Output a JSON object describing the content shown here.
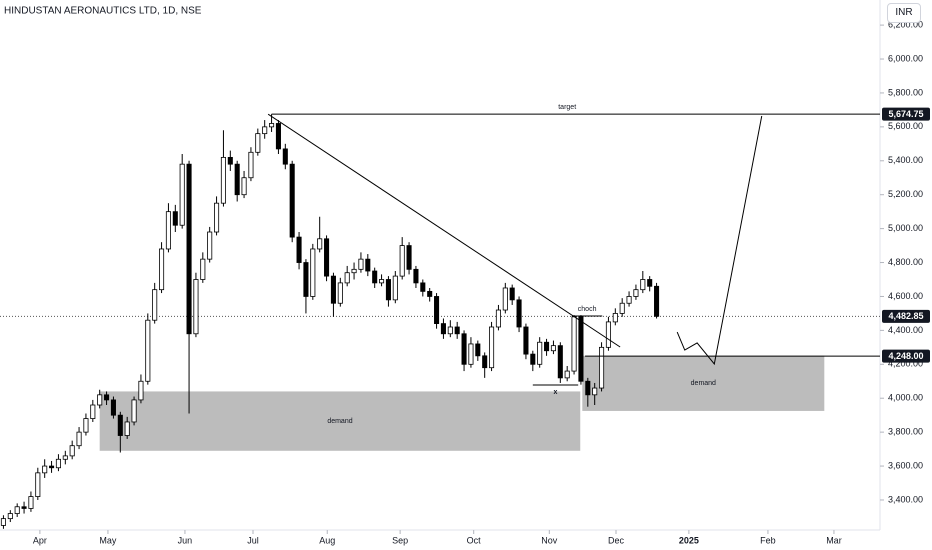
{
  "chart_data": {
    "type": "candlestick",
    "title": "HINDUSTAN AERONAUTICS LTD, 1D, NSE",
    "currency": "INR",
    "up_color": "#ffffff",
    "down_color": "#000000",
    "xlim": [
      -0.5,
      127.5
    ],
    "ylim": [
      3223,
      6348
    ],
    "xticks": [
      {
        "value": 5.3,
        "label": "Apr"
      },
      {
        "value": 15.2,
        "label": "May"
      },
      {
        "value": 26.4,
        "label": "Jun"
      },
      {
        "value": 36.3,
        "label": "Jul"
      },
      {
        "value": 47.1,
        "label": "Aug"
      },
      {
        "value": 57.7,
        "label": "Sep"
      },
      {
        "value": 68.4,
        "label": "Oct"
      },
      {
        "value": 79.4,
        "label": "Nov"
      },
      {
        "value": 89.1,
        "label": "Dec"
      },
      {
        "value": 99.7,
        "label": "2025"
      },
      {
        "value": 111.2,
        "label": "Feb"
      },
      {
        "value": 120.8,
        "label": "Mar"
      }
    ],
    "yticks": [
      {
        "value": 3400,
        "label": "3,400.00"
      },
      {
        "value": 3600,
        "label": "3,600.00"
      },
      {
        "value": 3800,
        "label": "3,800.00"
      },
      {
        "value": 4000,
        "label": "4,000.00"
      },
      {
        "value": 4200,
        "label": "4,200.00"
      },
      {
        "value": 4400,
        "label": "4,400.00"
      },
      {
        "value": 4600,
        "label": "4,600.00"
      },
      {
        "value": 4800,
        "label": "4,800.00"
      },
      {
        "value": 5000,
        "label": "5,000.00"
      },
      {
        "value": 5200,
        "label": "5,200.00"
      },
      {
        "value": 5400,
        "label": "5,400.00"
      },
      {
        "value": 5600,
        "label": "5,600.00"
      },
      {
        "value": 5800,
        "label": "5,800.00"
      },
      {
        "value": 6000,
        "label": "6,000.00"
      },
      {
        "value": 6200,
        "label": "6,200.00"
      }
    ],
    "candles": [
      [
        3250,
        3310,
        3230,
        3290
      ],
      [
        3290,
        3340,
        3270,
        3320
      ],
      [
        3320,
        3380,
        3300,
        3360
      ],
      [
        3360,
        3390,
        3320,
        3350
      ],
      [
        3350,
        3450,
        3330,
        3420
      ],
      [
        3420,
        3590,
        3400,
        3560
      ],
      [
        3560,
        3640,
        3530,
        3600
      ],
      [
        3600,
        3630,
        3560,
        3590
      ],
      [
        3590,
        3670,
        3570,
        3640
      ],
      [
        3640,
        3690,
        3610,
        3660
      ],
      [
        3660,
        3750,
        3640,
        3720
      ],
      [
        3720,
        3830,
        3700,
        3800
      ],
      [
        3800,
        3910,
        3780,
        3880
      ],
      [
        3880,
        3990,
        3860,
        3960
      ],
      [
        3960,
        4050,
        3940,
        4020
      ],
      [
        4020,
        4040,
        3960,
        3990
      ],
      [
        3990,
        4010,
        3880,
        3900
      ],
      [
        3900,
        3920,
        3680,
        3780
      ],
      [
        3780,
        3890,
        3760,
        3860
      ],
      [
        3860,
        4010,
        3840,
        3990
      ],
      [
        3990,
        4140,
        3970,
        4100
      ],
      [
        4100,
        4500,
        4080,
        4460
      ],
      [
        4460,
        4680,
        4440,
        4640
      ],
      [
        4640,
        4920,
        4620,
        4880
      ],
      [
        4880,
        5150,
        4860,
        5100
      ],
      [
        5100,
        5140,
        4980,
        5020
      ],
      [
        5020,
        5440,
        5000,
        5380
      ],
      [
        5380,
        5400,
        3910,
        4380
      ],
      [
        4380,
        4740,
        4360,
        4700
      ],
      [
        4700,
        4860,
        4680,
        4820
      ],
      [
        4820,
        5010,
        4800,
        4980
      ],
      [
        4980,
        5190,
        4960,
        5150
      ],
      [
        5150,
        5580,
        5130,
        5420
      ],
      [
        5420,
        5460,
        5340,
        5380
      ],
      [
        5380,
        5400,
        5160,
        5200
      ],
      [
        5200,
        5340,
        5180,
        5300
      ],
      [
        5300,
        5480,
        5280,
        5450
      ],
      [
        5450,
        5590,
        5430,
        5560
      ],
      [
        5560,
        5640,
        5530,
        5600
      ],
      [
        5600,
        5674.75,
        5570,
        5620
      ],
      [
        5620,
        5640,
        5440,
        5470
      ],
      [
        5470,
        5500,
        5350,
        5380
      ],
      [
        5380,
        5400,
        4920,
        4950
      ],
      [
        4950,
        4980,
        4760,
        4800
      ],
      [
        4800,
        4820,
        4500,
        4600
      ],
      [
        4600,
        4910,
        4580,
        4880
      ],
      [
        4880,
        5070,
        4860,
        4940
      ],
      [
        4940,
        4960,
        4690,
        4720
      ],
      [
        4720,
        4740,
        4480,
        4560
      ],
      [
        4560,
        4710,
        4540,
        4680
      ],
      [
        4680,
        4780,
        4660,
        4740
      ],
      [
        4740,
        4800,
        4700,
        4760
      ],
      [
        4760,
        4860,
        4740,
        4820
      ],
      [
        4820,
        4850,
        4720,
        4750
      ],
      [
        4750,
        4770,
        4650,
        4680
      ],
      [
        4680,
        4730,
        4660,
        4700
      ],
      [
        4700,
        4720,
        4540,
        4580
      ],
      [
        4580,
        4750,
        4560,
        4720
      ],
      [
        4720,
        4950,
        4700,
        4900
      ],
      [
        4900,
        4920,
        4730,
        4760
      ],
      [
        4760,
        4780,
        4650,
        4680
      ],
      [
        4680,
        4700,
        4600,
        4630
      ],
      [
        4630,
        4650,
        4570,
        4600
      ],
      [
        4600,
        4620,
        4410,
        4440
      ],
      [
        4440,
        4470,
        4350,
        4380
      ],
      [
        4380,
        4460,
        4360,
        4420
      ],
      [
        4420,
        4450,
        4350,
        4380
      ],
      [
        4380,
        4400,
        4160,
        4200
      ],
      [
        4200,
        4360,
        4180,
        4320
      ],
      [
        4320,
        4340,
        4220,
        4250
      ],
      [
        4250,
        4270,
        4120,
        4180
      ],
      [
        4180,
        4450,
        4160,
        4420
      ],
      [
        4420,
        4550,
        4400,
        4520
      ],
      [
        4520,
        4680,
        4500,
        4650
      ],
      [
        4650,
        4670,
        4550,
        4580
      ],
      [
        4580,
        4600,
        4390,
        4420
      ],
      [
        4420,
        4440,
        4230,
        4260
      ],
      [
        4260,
        4280,
        4160,
        4200
      ],
      [
        4200,
        4360,
        4180,
        4330
      ],
      [
        4330,
        4350,
        4250,
        4280
      ],
      [
        4280,
        4340,
        4260,
        4310
      ],
      [
        4310,
        4330,
        4090,
        4120
      ],
      [
        4120,
        4190,
        4100,
        4160
      ],
      [
        4160,
        4490,
        4140,
        4480
      ],
      [
        4480,
        4490,
        4080,
        4100
      ],
      [
        4100,
        4120,
        3950,
        4020
      ],
      [
        4020,
        4090,
        3960,
        4060
      ],
      [
        4060,
        4330,
        4040,
        4300
      ],
      [
        4300,
        4480,
        4280,
        4450
      ],
      [
        4450,
        4530,
        4430,
        4500
      ],
      [
        4500,
        4590,
        4480,
        4560
      ],
      [
        4560,
        4630,
        4540,
        4600
      ],
      [
        4600,
        4670,
        4580,
        4640
      ],
      [
        4640,
        4750,
        4620,
        4700
      ],
      [
        4700,
        4720,
        4630,
        4660
      ],
      [
        4660,
        4680,
        4470,
        4482.85
      ]
    ],
    "zones": [
      {
        "label": "demand",
        "x": [
          14,
          83.9
        ],
        "y": [
          3690,
          4040
        ]
      },
      {
        "label": "demand",
        "x": [
          84.2,
          119.4
        ],
        "y": [
          3925,
          4250
        ]
      }
    ],
    "trendline": {
      "x": [
        38.5,
        89.7
      ],
      "y": [
        5674.75,
        4302
      ]
    },
    "target": {
      "label": "target",
      "x": 39,
      "label_x": 82,
      "price": {
        "value": 5674.75,
        "label": "5,674.75"
      }
    },
    "level": {
      "x": 84.6,
      "price": {
        "value": 4248,
        "label": "4,248.00"
      }
    },
    "last_price": {
      "value": 4482.85,
      "label": "4,482.85"
    },
    "choch": {
      "label": "choch",
      "x": [
        82.7,
        87.1
      ],
      "y": 4485
    },
    "low_mark": {
      "label": "x",
      "x": [
        77,
        83.6
      ],
      "y": 4078
    },
    "projection": {
      "x": [
        98,
        99.1,
        100.9,
        103.4,
        110.3
      ],
      "y": [
        4390,
        4284,
        4326,
        4202,
        5664
      ]
    }
  }
}
